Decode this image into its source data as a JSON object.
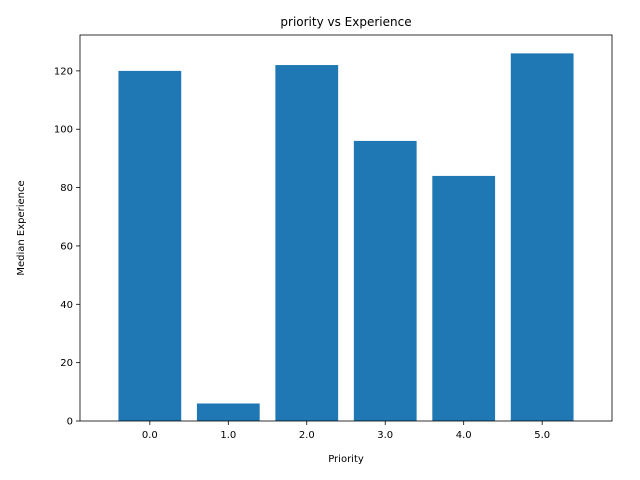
{
  "chart_data": {
    "type": "bar",
    "title": "priority vs Experience",
    "xlabel": "Priority",
    "ylabel": "Median Experience",
    "categories": [
      "0.0",
      "1.0",
      "2.0",
      "3.0",
      "4.0",
      "5.0"
    ],
    "values": [
      120,
      6,
      122,
      96,
      84,
      126
    ],
    "ylim": [
      0,
      132.3
    ],
    "yticks": [
      "0",
      "20",
      "40",
      "60",
      "80",
      "100",
      "120"
    ],
    "grid": false,
    "bar_color": "#1f77b4"
  }
}
